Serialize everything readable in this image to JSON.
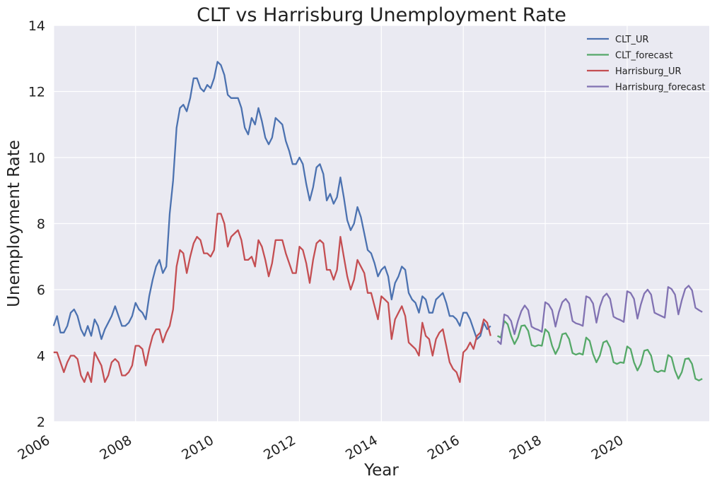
{
  "chart_data": {
    "type": "line",
    "title": "CLT vs Harrisburg Unemployment Rate",
    "xlabel": "Year",
    "ylabel": "Unemployment Rate",
    "xlim": [
      "2006-01-01",
      "2022-01-01"
    ],
    "ylim": [
      2,
      14
    ],
    "yticks": [
      2,
      4,
      6,
      8,
      10,
      12,
      14
    ],
    "xticks": [
      "2006",
      "2008",
      "2010",
      "2012",
      "2014",
      "2016",
      "2018",
      "2020"
    ],
    "grid": true,
    "legend_position": "top-right",
    "colors": {
      "plot_background": "#EAEAF2",
      "grid": "#ffffff"
    },
    "series": [
      {
        "name": "CLT_UR",
        "color": "#4C72B0",
        "start": "2006-01",
        "values": [
          4.9,
          5.2,
          4.7,
          4.7,
          4.9,
          5.3,
          5.4,
          5.2,
          4.8,
          4.6,
          4.9,
          4.6,
          5.1,
          4.9,
          4.5,
          4.8,
          5.0,
          5.2,
          5.5,
          5.2,
          4.9,
          4.9,
          5.0,
          5.2,
          5.6,
          5.4,
          5.3,
          5.1,
          5.8,
          6.3,
          6.7,
          6.9,
          6.5,
          6.7,
          8.3,
          9.3,
          10.9,
          11.5,
          11.6,
          11.4,
          11.8,
          12.4,
          12.4,
          12.1,
          12.0,
          12.2,
          12.1,
          12.4,
          12.9,
          12.8,
          12.5,
          11.9,
          11.8,
          11.8,
          11.8,
          11.5,
          10.9,
          10.7,
          11.2,
          11.0,
          11.5,
          11.1,
          10.6,
          10.4,
          10.6,
          11.2,
          11.1,
          11.0,
          10.5,
          10.2,
          9.8,
          9.8,
          10.0,
          9.8,
          9.2,
          8.7,
          9.1,
          9.7,
          9.8,
          9.5,
          8.7,
          8.9,
          8.6,
          8.8,
          9.4,
          8.8,
          8.1,
          7.8,
          8.0,
          8.5,
          8.2,
          7.7,
          7.2,
          7.1,
          6.8,
          6.4,
          6.6,
          6.7,
          6.4,
          5.7,
          6.2,
          6.4,
          6.7,
          6.6,
          5.9,
          5.7,
          5.6,
          5.3,
          5.8,
          5.7,
          5.3,
          5.3,
          5.7,
          5.8,
          5.9,
          5.6,
          5.2,
          5.2,
          5.1,
          4.9,
          5.3,
          5.3,
          5.1,
          4.8,
          4.5,
          4.6,
          5.0,
          4.8,
          4.9
        ]
      },
      {
        "name": "CLT_forecast",
        "color": "#55A868",
        "start": "2016-11",
        "values": [
          4.6,
          4.55,
          5.05,
          4.95,
          4.6,
          4.35,
          4.55,
          4.9,
          4.92,
          4.75,
          4.32,
          4.28,
          4.32,
          4.3,
          4.8,
          4.7,
          4.3,
          4.05,
          4.25,
          4.65,
          4.68,
          4.5,
          4.08,
          4.03,
          4.07,
          4.03,
          4.55,
          4.45,
          4.05,
          3.8,
          4.0,
          4.4,
          4.45,
          4.25,
          3.8,
          3.75,
          3.8,
          3.78,
          4.28,
          4.2,
          3.8,
          3.55,
          3.75,
          4.15,
          4.18,
          4.0,
          3.55,
          3.5,
          3.55,
          3.52,
          4.02,
          3.95,
          3.55,
          3.3,
          3.5,
          3.9,
          3.92,
          3.75,
          3.3,
          3.25,
          3.3
        ]
      },
      {
        "name": "Harrisburg_UR",
        "color": "#C44E52",
        "start": "2006-01",
        "values": [
          4.1,
          4.1,
          3.8,
          3.5,
          3.8,
          4.0,
          4.0,
          3.9,
          3.4,
          3.2,
          3.5,
          3.2,
          4.1,
          3.9,
          3.7,
          3.2,
          3.4,
          3.8,
          3.9,
          3.8,
          3.4,
          3.4,
          3.5,
          3.7,
          4.3,
          4.3,
          4.2,
          3.7,
          4.2,
          4.6,
          4.8,
          4.8,
          4.4,
          4.7,
          4.9,
          5.4,
          6.7,
          7.2,
          7.1,
          6.5,
          7.0,
          7.4,
          7.6,
          7.5,
          7.1,
          7.1,
          7.0,
          7.2,
          8.3,
          8.3,
          8.0,
          7.3,
          7.6,
          7.7,
          7.8,
          7.5,
          6.9,
          6.9,
          7.0,
          6.7,
          7.5,
          7.3,
          6.9,
          6.4,
          6.8,
          7.5,
          7.5,
          7.5,
          7.1,
          6.8,
          6.5,
          6.5,
          7.3,
          7.2,
          6.8,
          6.2,
          6.9,
          7.4,
          7.5,
          7.4,
          6.6,
          6.6,
          6.3,
          6.6,
          7.6,
          7.0,
          6.4,
          6.0,
          6.3,
          6.9,
          6.7,
          6.5,
          5.9,
          5.9,
          5.5,
          5.1,
          5.8,
          5.7,
          5.6,
          4.5,
          5.1,
          5.3,
          5.5,
          5.2,
          4.4,
          4.3,
          4.2,
          4.0,
          5.0,
          4.6,
          4.5,
          4.0,
          4.5,
          4.7,
          4.8,
          4.3,
          3.8,
          3.6,
          3.5,
          3.2,
          4.1,
          4.2,
          4.4,
          4.2,
          4.6,
          4.7,
          5.1,
          5.0,
          4.6
        ]
      },
      {
        "name": "Harrisburg_forecast",
        "color": "#8172B2",
        "start": "2016-11",
        "values": [
          4.45,
          4.35,
          5.25,
          5.2,
          5.05,
          4.65,
          5.05,
          5.35,
          5.52,
          5.38,
          4.88,
          4.82,
          4.78,
          4.72,
          5.62,
          5.55,
          5.38,
          4.88,
          5.32,
          5.62,
          5.72,
          5.58,
          5.05,
          4.98,
          4.95,
          4.9,
          5.8,
          5.75,
          5.58,
          5.0,
          5.48,
          5.78,
          5.88,
          5.72,
          5.18,
          5.12,
          5.08,
          5.02,
          5.95,
          5.9,
          5.72,
          5.12,
          5.55,
          5.88,
          6.0,
          5.85,
          5.3,
          5.25,
          5.2,
          5.15,
          6.08,
          6.02,
          5.85,
          5.25,
          5.68,
          6.02,
          6.12,
          5.98,
          5.45,
          5.38,
          5.32
        ]
      }
    ]
  }
}
